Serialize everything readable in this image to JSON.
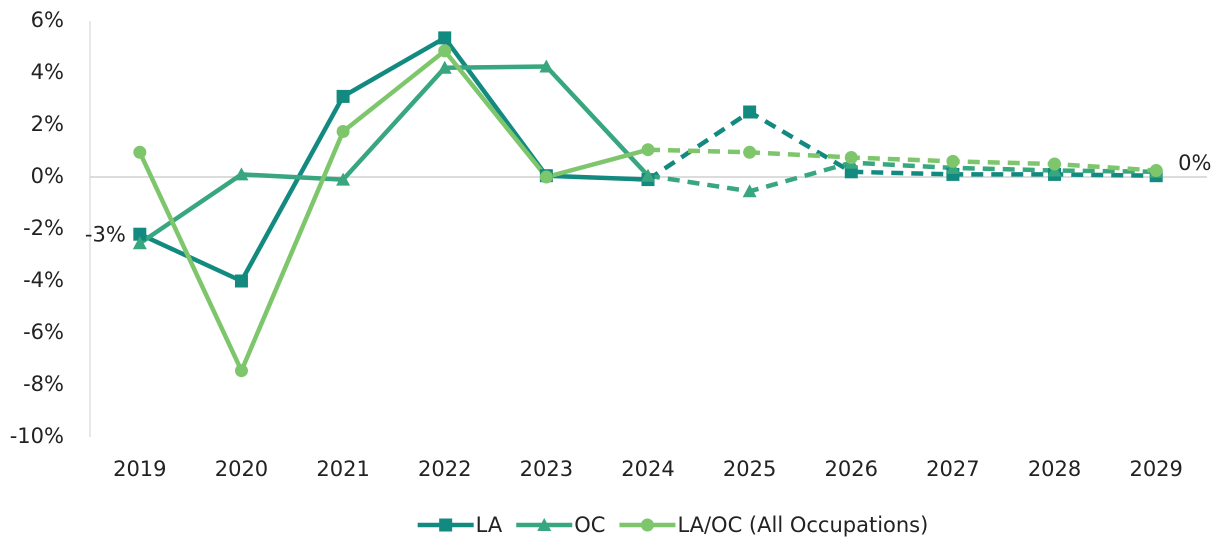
{
  "chart_data": {
    "type": "line",
    "categories": [
      "2019",
      "2020",
      "2021",
      "2022",
      "2023",
      "2024",
      "2025",
      "2026",
      "2027",
      "2028",
      "2029"
    ],
    "series": [
      {
        "name": "LA",
        "color": "#128a80",
        "marker": "square",
        "values": [
          -2.2,
          -4.0,
          3.1,
          5.35,
          0.05,
          -0.1,
          2.5,
          0.2,
          0.1,
          0.1,
          0.05
        ]
      },
      {
        "name": "OC",
        "color": "#38a67e",
        "marker": "triangle",
        "values": [
          -2.55,
          0.1,
          -0.1,
          4.2,
          4.25,
          0.05,
          -0.55,
          0.55,
          0.35,
          0.25,
          0.2
        ],
        "value_labels": [
          "-3%",
          null,
          null,
          null,
          null,
          null,
          null,
          null,
          null,
          null,
          "0%"
        ]
      },
      {
        "name": "LA/OC (All Occupations)",
        "color": "#7ec66b",
        "marker": "circle",
        "values": [
          0.95,
          -7.45,
          1.75,
          4.85,
          0.0,
          1.05,
          0.95,
          0.75,
          0.6,
          0.5,
          0.25
        ]
      }
    ],
    "dashed_from": 5,
    "ylim": [
      -10,
      6
    ],
    "yticks": [
      {
        "value": -10,
        "label": "-10%"
      },
      {
        "value": -8,
        "label": "-8%"
      },
      {
        "value": -6,
        "label": "-6%"
      },
      {
        "value": -4,
        "label": "-4%"
      },
      {
        "value": -2,
        "label": "-2%"
      },
      {
        "value": 0,
        "label": "0%"
      },
      {
        "value": 2,
        "label": "2%"
      },
      {
        "value": 4,
        "label": "4%"
      },
      {
        "value": 6,
        "label": "6%"
      }
    ],
    "legend": "bottom"
  }
}
